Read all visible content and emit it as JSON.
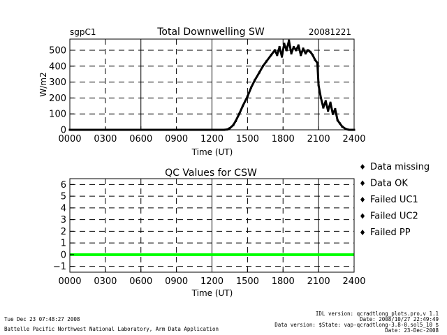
{
  "chart_data": [
    {
      "type": "scatter",
      "title": "Total Downwelling SW",
      "site": "sgpC1",
      "date": "20081221",
      "xlabel": "Time (UT)",
      "ylabel": "W/m2",
      "xlim": [
        0,
        2400
      ],
      "ylim": [
        0,
        570
      ],
      "x_ticks": [
        "0000",
        "0300",
        "0600",
        "0900",
        "1200",
        "1500",
        "1800",
        "2100",
        "2400"
      ],
      "y_ticks": [
        "0",
        "100",
        "200",
        "300",
        "400",
        "500"
      ],
      "grid": true,
      "series": [
        {
          "x": [
            0,
            1300,
            1330,
            1350,
            1380,
            1400,
            1430,
            1460,
            1500,
            1530,
            1560,
            1600,
            1630,
            1660,
            1700,
            1730,
            1750,
            1770,
            1790,
            1810,
            1830,
            1850,
            1870,
            1890,
            1910,
            1930,
            1950,
            1970,
            1990,
            2010,
            2030,
            2050,
            2070,
            2090,
            2100,
            2120,
            2140,
            2160,
            2180,
            2200,
            2220,
            2240,
            2260,
            2280,
            2300,
            2330,
            2360,
            2400
          ],
          "values": [
            0,
            0,
            2,
            10,
            30,
            55,
            100,
            150,
            210,
            265,
            310,
            360,
            400,
            430,
            470,
            500,
            470,
            520,
            460,
            540,
            500,
            560,
            480,
            520,
            500,
            530,
            470,
            510,
            480,
            500,
            490,
            470,
            440,
            420,
            280,
            200,
            140,
            180,
            120,
            170,
            100,
            130,
            60,
            40,
            20,
            5,
            0,
            0
          ]
        }
      ]
    },
    {
      "type": "scatter",
      "title": "QC Values for CSW",
      "xlabel": "Time (UT)",
      "xlim": [
        0,
        2400
      ],
      "ylim": [
        -1.5,
        6.5
      ],
      "x_ticks": [
        "0000",
        "0300",
        "0600",
        "0900",
        "1200",
        "1500",
        "1800",
        "2100",
        "2400"
      ],
      "y_ticks": [
        "−1",
        "0",
        "1",
        "2",
        "3",
        "4",
        "5",
        "6"
      ],
      "grid": true,
      "series": [
        {
          "name": "Data OK",
          "x": [
            0,
            2400
          ],
          "values": [
            0,
            0
          ]
        }
      ]
    }
  ],
  "legend": [
    {
      "label": "Data missing",
      "color": "#000000"
    },
    {
      "label": "Data OK",
      "color": "#00ff00"
    },
    {
      "label": "Failed UC1",
      "color": "#ffff00"
    },
    {
      "label": "Failed UC2",
      "color": "#ff8000"
    },
    {
      "label": "Failed PP",
      "color": "#ff0000"
    }
  ],
  "footer": {
    "timestamp": "Tue Dec 23 07:48:27 2008",
    "org": "Battelle Pacific Northwest National Laboratory, Arm Data Application",
    "idl_version": "IDL version: qcradtlong_plots.pro,v 1.1",
    "version_date": "Date: 2008/10/27 22:49:49",
    "data_version": "Data version: $State: vap-qcradtlong-3.8-0.sol5_10 $",
    "data_date": "Date: 23-Dec-2008"
  }
}
